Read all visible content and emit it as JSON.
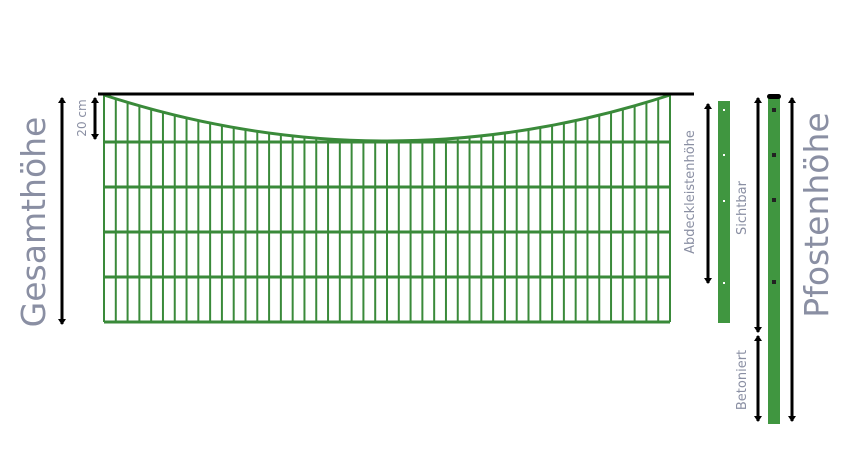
{
  "labels": {
    "total_height": "Gesamthöhe",
    "dip": "20 cm",
    "cover_strip_height": "Abdeckleistenhöhe",
    "visible": "Sichtbar",
    "concreted": "Betoniert",
    "post_height": "Pfostenhöhe"
  },
  "colors": {
    "fence_green": "#3a8a3a",
    "post_green": "#409640",
    "label_gray": "#8a8fa3",
    "arrow_black": "#000000"
  },
  "icons": [
    "double-arrow-icon"
  ]
}
